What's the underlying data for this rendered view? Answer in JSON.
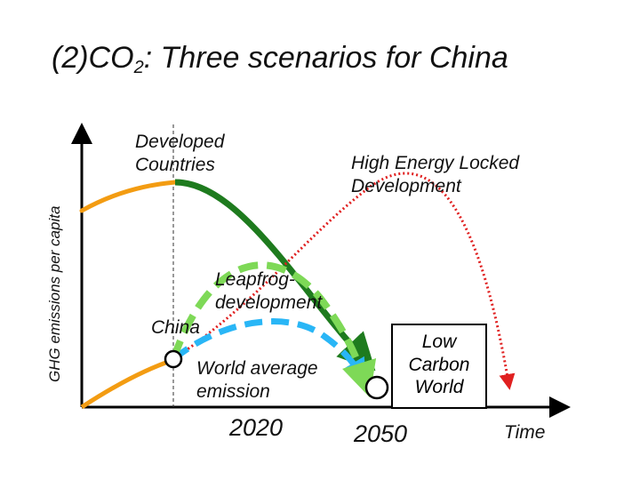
{
  "title": {
    "prefix": "(2)CO",
    "subscript": "2",
    "suffix": ": Three scenarios for China"
  },
  "y_axis_label": "GHG emissions per capita",
  "x_axis_label": "Time",
  "labels": {
    "developed_line1": "Developed",
    "developed_line2": "Countries",
    "high_energy_line1": "High Energy Locked",
    "high_energy_line2": "Development",
    "leapfrog_line1": "Leapfrog-",
    "leapfrog_line2": "development",
    "china": "China",
    "world_avg_line1": "World average",
    "world_avg_line2": "emission",
    "low_carbon_line1": "Low",
    "low_carbon_line2": "Carbon",
    "low_carbon_line3": "World"
  },
  "ticks": {
    "t2020": "2020",
    "t2050": "2050"
  },
  "colors": {
    "developed_historical": "#F39C12",
    "developed_decline": "#1E7B1E",
    "leapfrog": "#7ED957",
    "world_average": "#29B6F6",
    "high_energy": "#E02020",
    "china_historical": "#F39C12",
    "axis": "#000000"
  }
}
